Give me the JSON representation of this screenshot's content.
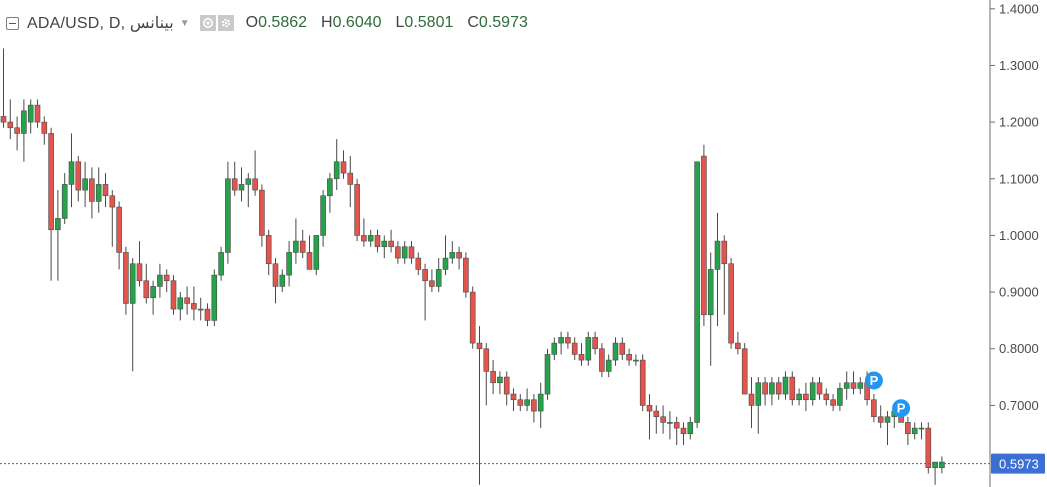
{
  "legend": {
    "symbol": "ADA/USD, D, بينانس",
    "open_label": "O",
    "open_value": "0.5862",
    "high_label": "H",
    "high_value": "0.6040",
    "low_label": "L",
    "low_value": "0.5801",
    "close_label": "C",
    "close_value": "0.5973",
    "icons": [
      "collapse-icon",
      "chevron-down-icon",
      "eye-icon",
      "gear-icon"
    ]
  },
  "colors": {
    "up": "#26a24a",
    "down": "#e2554f",
    "wick": "#4a4a4a",
    "price_line": "#3a66c4",
    "price_badge": "#3b6fd4",
    "marker": "#2196f3"
  },
  "chart_data": {
    "type": "candlestick",
    "title": "",
    "ylim": [
      0.556,
      1.4155
    ],
    "y_ticks": [
      "1.4000",
      "1.3000",
      "1.2000",
      "1.1000",
      "1.0000",
      "0.9000",
      "0.8000",
      "0.7000"
    ],
    "last_price": "0.5973",
    "markers": [
      {
        "label": "P",
        "index": 128,
        "price": 0.744
      },
      {
        "label": "P",
        "index": 132,
        "price": 0.695
      }
    ],
    "ohlc": [
      [
        1.21,
        1.33,
        1.19,
        1.2
      ],
      [
        1.2,
        1.24,
        1.17,
        1.19
      ],
      [
        1.19,
        1.21,
        1.15,
        1.18
      ],
      [
        1.18,
        1.24,
        1.13,
        1.22
      ],
      [
        1.2,
        1.24,
        1.18,
        1.23
      ],
      [
        1.23,
        1.24,
        1.19,
        1.2
      ],
      [
        1.2,
        1.21,
        1.16,
        1.18
      ],
      [
        1.18,
        1.19,
        0.92,
        1.01
      ],
      [
        1.01,
        1.08,
        0.92,
        1.03
      ],
      [
        1.03,
        1.11,
        1.02,
        1.09
      ],
      [
        1.09,
        1.18,
        1.05,
        1.13
      ],
      [
        1.13,
        1.14,
        1.06,
        1.08
      ],
      [
        1.08,
        1.13,
        1.05,
        1.1
      ],
      [
        1.1,
        1.12,
        1.03,
        1.06
      ],
      [
        1.06,
        1.12,
        1.04,
        1.09
      ],
      [
        1.09,
        1.11,
        1.05,
        1.07
      ],
      [
        1.07,
        1.08,
        0.98,
        1.05
      ],
      [
        1.05,
        1.06,
        0.94,
        0.97
      ],
      [
        0.97,
        0.98,
        0.86,
        0.88
      ],
      [
        0.88,
        0.96,
        0.76,
        0.95
      ],
      [
        0.95,
        0.99,
        0.91,
        0.92
      ],
      [
        0.92,
        0.95,
        0.88,
        0.89
      ],
      [
        0.89,
        0.92,
        0.86,
        0.91
      ],
      [
        0.91,
        0.95,
        0.89,
        0.93
      ],
      [
        0.93,
        0.94,
        0.9,
        0.92
      ],
      [
        0.92,
        0.93,
        0.86,
        0.87
      ],
      [
        0.87,
        0.9,
        0.85,
        0.89
      ],
      [
        0.89,
        0.91,
        0.86,
        0.88
      ],
      [
        0.88,
        0.91,
        0.85,
        0.87
      ],
      [
        0.87,
        0.89,
        0.85,
        0.87
      ],
      [
        0.87,
        0.88,
        0.84,
        0.85
      ],
      [
        0.85,
        0.94,
        0.84,
        0.93
      ],
      [
        0.93,
        0.98,
        0.92,
        0.97
      ],
      [
        0.97,
        1.13,
        0.95,
        1.1
      ],
      [
        1.1,
        1.13,
        1.07,
        1.08
      ],
      [
        1.08,
        1.12,
        1.06,
        1.09
      ],
      [
        1.09,
        1.11,
        1.05,
        1.1
      ],
      [
        1.1,
        1.15,
        1.07,
        1.08
      ],
      [
        1.08,
        1.09,
        0.98,
        1.0
      ],
      [
        1.0,
        1.01,
        0.93,
        0.95
      ],
      [
        0.95,
        0.96,
        0.88,
        0.91
      ],
      [
        0.91,
        0.94,
        0.9,
        0.93
      ],
      [
        0.93,
        0.99,
        0.91,
        0.97
      ],
      [
        0.97,
        1.03,
        0.95,
        0.99
      ],
      [
        0.99,
        1.01,
        0.96,
        0.97
      ],
      [
        0.97,
        1.0,
        0.94,
        0.94
      ],
      [
        0.94,
        1.0,
        0.93,
        1.0
      ],
      [
        1.0,
        1.08,
        0.98,
        1.07
      ],
      [
        1.07,
        1.11,
        1.04,
        1.1
      ],
      [
        1.1,
        1.17,
        1.08,
        1.13
      ],
      [
        1.13,
        1.15,
        1.1,
        1.11
      ],
      [
        1.11,
        1.14,
        1.05,
        1.09
      ],
      [
        1.09,
        1.1,
        0.99,
        1.0
      ],
      [
        1.0,
        1.03,
        0.98,
        0.99
      ],
      [
        0.99,
        1.01,
        0.98,
        1.0
      ],
      [
        1.0,
        1.01,
        0.97,
        0.98
      ],
      [
        0.98,
        1.0,
        0.96,
        0.99
      ],
      [
        0.99,
        1.01,
        0.97,
        0.98
      ],
      [
        0.98,
        0.99,
        0.95,
        0.96
      ],
      [
        0.96,
        0.99,
        0.95,
        0.98
      ],
      [
        0.98,
        0.99,
        0.95,
        0.96
      ],
      [
        0.96,
        0.97,
        0.93,
        0.94
      ],
      [
        0.94,
        0.95,
        0.85,
        0.92
      ],
      [
        0.92,
        0.94,
        0.9,
        0.91
      ],
      [
        0.91,
        0.96,
        0.9,
        0.94
      ],
      [
        0.94,
        1.0,
        0.93,
        0.96
      ],
      [
        0.96,
        0.99,
        0.95,
        0.97
      ],
      [
        0.97,
        0.98,
        0.94,
        0.96
      ],
      [
        0.96,
        0.97,
        0.89,
        0.9
      ],
      [
        0.9,
        0.91,
        0.8,
        0.81
      ],
      [
        0.81,
        0.84,
        0.56,
        0.8
      ],
      [
        0.8,
        0.81,
        0.7,
        0.76
      ],
      [
        0.76,
        0.78,
        0.72,
        0.74
      ],
      [
        0.74,
        0.76,
        0.72,
        0.75
      ],
      [
        0.75,
        0.76,
        0.7,
        0.72
      ],
      [
        0.72,
        0.73,
        0.69,
        0.71
      ],
      [
        0.71,
        0.72,
        0.69,
        0.7
      ],
      [
        0.7,
        0.73,
        0.69,
        0.71
      ],
      [
        0.71,
        0.72,
        0.67,
        0.69
      ],
      [
        0.69,
        0.74,
        0.66,
        0.72
      ],
      [
        0.72,
        0.8,
        0.71,
        0.79
      ],
      [
        0.79,
        0.82,
        0.78,
        0.81
      ],
      [
        0.81,
        0.83,
        0.79,
        0.82
      ],
      [
        0.82,
        0.83,
        0.8,
        0.81
      ],
      [
        0.81,
        0.82,
        0.78,
        0.79
      ],
      [
        0.79,
        0.81,
        0.77,
        0.78
      ],
      [
        0.78,
        0.83,
        0.77,
        0.82
      ],
      [
        0.82,
        0.83,
        0.79,
        0.8
      ],
      [
        0.8,
        0.81,
        0.75,
        0.76
      ],
      [
        0.76,
        0.79,
        0.75,
        0.78
      ],
      [
        0.78,
        0.82,
        0.77,
        0.81
      ],
      [
        0.81,
        0.82,
        0.78,
        0.79
      ],
      [
        0.79,
        0.8,
        0.77,
        0.78
      ],
      [
        0.78,
        0.79,
        0.77,
        0.78
      ],
      [
        0.78,
        0.79,
        0.69,
        0.7
      ],
      [
        0.7,
        0.72,
        0.64,
        0.69
      ],
      [
        0.69,
        0.7,
        0.65,
        0.68
      ],
      [
        0.68,
        0.7,
        0.65,
        0.67
      ],
      [
        0.67,
        0.69,
        0.64,
        0.67
      ],
      [
        0.67,
        0.68,
        0.63,
        0.66
      ],
      [
        0.66,
        0.67,
        0.63,
        0.65
      ],
      [
        0.65,
        0.68,
        0.64,
        0.67
      ],
      [
        0.67,
        1.13,
        0.66,
        1.13
      ],
      [
        1.14,
        1.16,
        0.84,
        0.86
      ],
      [
        0.86,
        0.97,
        0.77,
        0.94
      ],
      [
        0.94,
        1.04,
        0.84,
        0.99
      ],
      [
        0.99,
        1.0,
        0.86,
        0.95
      ],
      [
        0.95,
        0.96,
        0.8,
        0.81
      ],
      [
        0.81,
        0.83,
        0.79,
        0.8
      ],
      [
        0.8,
        0.81,
        0.72,
        0.72
      ],
      [
        0.72,
        0.75,
        0.66,
        0.7
      ],
      [
        0.7,
        0.75,
        0.65,
        0.74
      ],
      [
        0.74,
        0.75,
        0.7,
        0.72
      ],
      [
        0.72,
        0.75,
        0.7,
        0.74
      ],
      [
        0.74,
        0.75,
        0.71,
        0.72
      ],
      [
        0.72,
        0.76,
        0.71,
        0.75
      ],
      [
        0.75,
        0.76,
        0.7,
        0.71
      ],
      [
        0.71,
        0.73,
        0.7,
        0.72
      ],
      [
        0.72,
        0.74,
        0.69,
        0.71
      ],
      [
        0.71,
        0.75,
        0.7,
        0.74
      ],
      [
        0.74,
        0.75,
        0.71,
        0.72
      ],
      [
        0.72,
        0.73,
        0.7,
        0.71
      ],
      [
        0.71,
        0.72,
        0.69,
        0.7
      ],
      [
        0.7,
        0.74,
        0.69,
        0.73
      ],
      [
        0.73,
        0.76,
        0.71,
        0.74
      ],
      [
        0.74,
        0.76,
        0.72,
        0.73
      ],
      [
        0.73,
        0.75,
        0.72,
        0.74
      ],
      [
        0.74,
        0.76,
        0.7,
        0.71
      ],
      [
        0.71,
        0.72,
        0.67,
        0.68
      ],
      [
        0.68,
        0.7,
        0.66,
        0.67
      ],
      [
        0.67,
        0.69,
        0.63,
        0.68
      ],
      [
        0.68,
        0.7,
        0.66,
        0.69
      ],
      [
        0.69,
        0.71,
        0.67,
        0.67
      ],
      [
        0.67,
        0.68,
        0.63,
        0.65
      ],
      [
        0.65,
        0.67,
        0.64,
        0.66
      ],
      [
        0.66,
        0.67,
        0.64,
        0.66
      ],
      [
        0.66,
        0.67,
        0.58,
        0.59
      ],
      [
        0.59,
        0.6,
        0.56,
        0.6
      ],
      [
        0.59,
        0.61,
        0.58,
        0.6
      ]
    ]
  }
}
